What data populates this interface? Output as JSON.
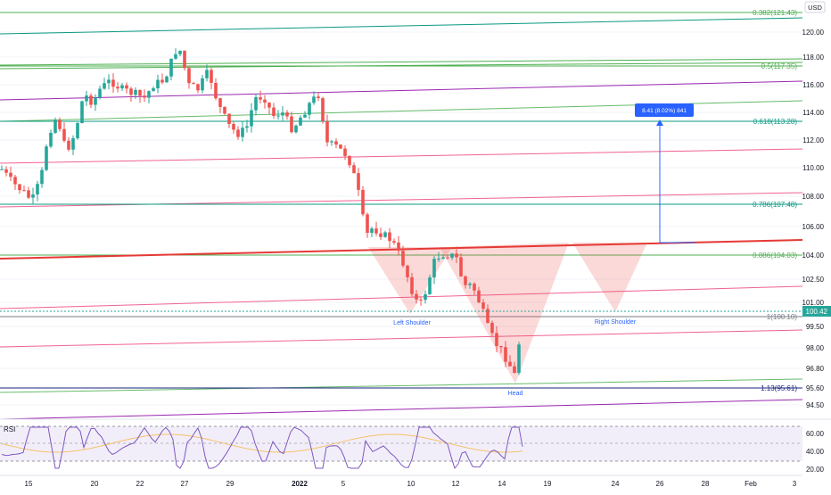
{
  "currency": "USD",
  "chart_data": {
    "type": "candlestick",
    "price_axis": {
      "ticks": [
        "120.00",
        "118.00",
        "116.00",
        "114.00",
        "112.00",
        "110.00",
        "108.00",
        "106.00",
        "104.00",
        "102.50",
        "101.00",
        "99.50",
        "98.00",
        "96.80",
        "95.60",
        "94.50"
      ],
      "current_price": "100.42",
      "range": [
        93.5,
        121.8
      ]
    },
    "time_axis": {
      "ticks": [
        "15",
        "20",
        "22",
        "27",
        "29",
        "2022",
        "5",
        "10",
        "12",
        "14",
        "19",
        "24",
        "26",
        "28",
        "Feb",
        "3"
      ]
    },
    "fib_levels": [
      {
        "label": "0.382(121.43)"
      },
      {
        "label": "0.5(117.35)"
      },
      {
        "label": "0.618(113.28)"
      },
      {
        "label": "0.786(107.48)"
      },
      {
        "label": "0.886(104.03)"
      },
      {
        "label": "1(100.10)"
      },
      {
        "label": "1.13(95.61)"
      }
    ],
    "pattern_labels": {
      "left_shoulder": "Left Shoulder",
      "head": "Head",
      "right_shoulder": "Right Shoulder"
    },
    "measure_label": "8.41 (8.02%) 841",
    "rsi": {
      "title": "RSI",
      "ticks": [
        "60.00",
        "40.00",
        "20.00"
      ]
    },
    "colors": {
      "up": "#26a69a",
      "down": "#ef5350",
      "fib_green": "#4caf50",
      "fib_teal": "#089981",
      "neckline": "#e53935",
      "measure": "#2962ff",
      "rsi_line": "#7e57c2",
      "rsi_ma": "#f5c26b"
    }
  }
}
